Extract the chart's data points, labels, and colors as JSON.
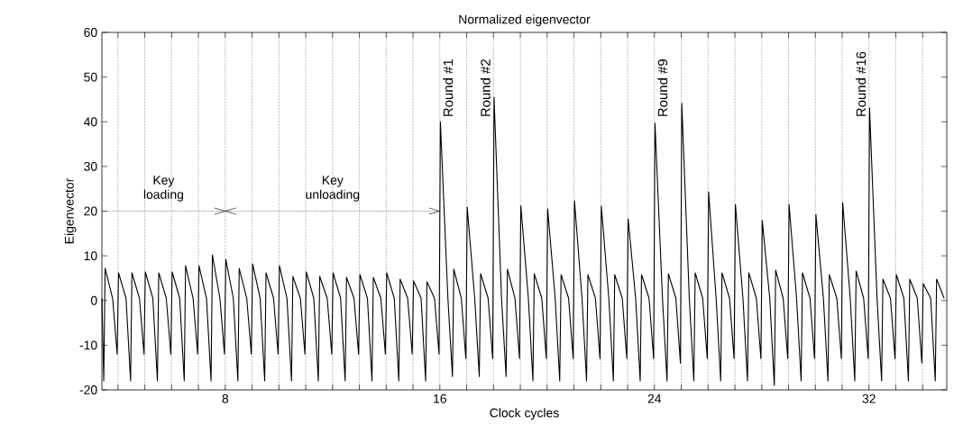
{
  "chart_data": {
    "type": "line",
    "title": "Normalized eigenvector",
    "xlabel": "Clock cycles",
    "ylabel": "Eigenvector",
    "xlim": [
      3.4,
      34.9
    ],
    "ylim": [
      -20,
      60
    ],
    "xticks": [
      {
        "value": 4,
        "label": null
      },
      {
        "value": 5,
        "label": null
      },
      {
        "value": 6,
        "label": null
      },
      {
        "value": 7,
        "label": null
      },
      8,
      {
        "value": 9,
        "label": null
      },
      {
        "value": 10,
        "label": null
      },
      {
        "value": 11,
        "label": null
      },
      {
        "value": 12,
        "label": null
      },
      {
        "value": 13,
        "label": null
      },
      {
        "value": 14,
        "label": null
      },
      {
        "value": 15,
        "label": null
      },
      16,
      {
        "value": 17,
        "label": null
      },
      {
        "value": 18,
        "label": null
      },
      {
        "value": 19,
        "label": null
      },
      {
        "value": 20,
        "label": null
      },
      {
        "value": 21,
        "label": null
      },
      {
        "value": 22,
        "label": null
      },
      {
        "value": 23,
        "label": null
      },
      24,
      {
        "value": 25,
        "label": null
      },
      {
        "value": 26,
        "label": null
      },
      {
        "value": 27,
        "label": null
      },
      {
        "value": 28,
        "label": null
      },
      {
        "value": 29,
        "label": null
      },
      {
        "value": 30,
        "label": null
      },
      {
        "value": 31,
        "label": null
      },
      32,
      {
        "value": 33,
        "label": null
      },
      {
        "value": 34,
        "label": null
      }
    ],
    "yticks": [
      -20,
      -10,
      0,
      10,
      20,
      30,
      40,
      50,
      60
    ],
    "grid": "x",
    "series": [
      {
        "color": "#000000",
        "line_style": "dotted",
        "x": [
          3.4,
          8
        ],
        "values": [
          20,
          20
        ]
      },
      {
        "color": "#000000",
        "line_style": "dotted",
        "x": [
          8,
          16
        ],
        "values": [
          20,
          20
        ]
      },
      {
        "color": "#000000",
        "line_style": "solid",
        "x": [
          3.4,
          3.47,
          3.52,
          3.8,
          3.97,
          4.02,
          4.3,
          4.47,
          4.52,
          4.8,
          4.97,
          5.02,
          5.3,
          5.47,
          5.52,
          5.8,
          5.97,
          6.02,
          6.3,
          6.47,
          6.52,
          6.8,
          6.97,
          7.02,
          7.3,
          7.47,
          7.52,
          7.8,
          7.97,
          8.02,
          8.3,
          8.47,
          8.52,
          8.8,
          8.97,
          9.02,
          9.3,
          9.47,
          9.52,
          9.8,
          9.97,
          10.02,
          10.3,
          10.47,
          10.52,
          10.8,
          10.97,
          11.02,
          11.3,
          11.47,
          11.52,
          11.8,
          11.97,
          12.02,
          12.3,
          12.47,
          12.52,
          12.8,
          12.97,
          13.02,
          13.3,
          13.47,
          13.52,
          13.8,
          13.97,
          14.02,
          14.3,
          14.47,
          14.52,
          14.8,
          14.97,
          15.02,
          15.3,
          15.47,
          15.52,
          15.8,
          15.97,
          16.02,
          16.3,
          16.47,
          16.52,
          16.8,
          16.97,
          17.02,
          17.3,
          17.47,
          17.52,
          17.8,
          17.97,
          18.02,
          18.3,
          18.47,
          18.52,
          18.8,
          18.97,
          19.02,
          19.3,
          19.47,
          19.52,
          19.8,
          19.97,
          20.02,
          20.3,
          20.47,
          20.52,
          20.8,
          20.97,
          21.02,
          21.3,
          21.47,
          21.52,
          21.8,
          21.97,
          22.02,
          22.3,
          22.47,
          22.52,
          22.8,
          22.97,
          23.02,
          23.3,
          23.47,
          23.52,
          23.8,
          23.97,
          24.02,
          24.3,
          24.47,
          24.52,
          24.8,
          24.97,
          25.02,
          25.3,
          25.47,
          25.52,
          25.8,
          25.97,
          26.02,
          26.3,
          26.47,
          26.52,
          26.8,
          26.97,
          27.02,
          27.3,
          27.47,
          27.52,
          27.8,
          27.97,
          28.02,
          28.3,
          28.47,
          28.52,
          28.8,
          28.97,
          29.02,
          29.3,
          29.47,
          29.52,
          29.8,
          29.97,
          30.02,
          30.3,
          30.47,
          30.52,
          30.8,
          30.97,
          31.02,
          31.3,
          31.47,
          31.52,
          31.8,
          31.97,
          32.02,
          32.3,
          32.47,
          32.52,
          32.8,
          32.97,
          33.02,
          33.3,
          33.47,
          33.52,
          33.8,
          33.97,
          34.02,
          34.3,
          34.47,
          34.52,
          34.8
        ],
        "values": [
          0.5,
          -18,
          7.2,
          0.5,
          -12,
          6.2,
          0.5,
          -18,
          6.2,
          0.5,
          -12,
          6.4,
          0.5,
          -18,
          6.2,
          0.5,
          -12,
          6.4,
          0.5,
          -18,
          7.8,
          0.5,
          -12,
          7.8,
          0.5,
          -18,
          10.2,
          0.5,
          -12,
          9.2,
          0.5,
          -18,
          7.2,
          0.5,
          -12,
          8.2,
          0.5,
          -18,
          6.2,
          0.5,
          -12,
          7.8,
          0.5,
          -18,
          5.4,
          0.5,
          -12,
          6.4,
          0.5,
          -18,
          5.4,
          0.5,
          -12,
          6.2,
          0.5,
          -18,
          5.2,
          0.5,
          -12,
          5.8,
          0.5,
          -18,
          5.2,
          0.5,
          -12,
          6.2,
          0.5,
          -18,
          4.8,
          0.5,
          -12,
          4.4,
          0.5,
          -18,
          4.2,
          0.5,
          -12,
          40,
          0.5,
          -17,
          7,
          0.5,
          -13,
          20.9,
          0.5,
          -17,
          6,
          0.5,
          -13,
          45.5,
          0.5,
          -17,
          7,
          0.5,
          -13,
          21.2,
          0.5,
          -18,
          6,
          0.5,
          -13,
          20.5,
          0.5,
          -18,
          5.8,
          0.5,
          -13,
          22.3,
          0.5,
          -18,
          5.8,
          0.5,
          -13,
          21.1,
          0.5,
          -18,
          5.8,
          0.5,
          -13,
          18.3,
          0.5,
          -18,
          5.8,
          0.5,
          -13,
          39.7,
          0.5,
          -18,
          6,
          0.5,
          -14,
          44.1,
          0.5,
          -18,
          6.2,
          0.5,
          -13,
          24.3,
          0.5,
          -18,
          6.2,
          0.5,
          -13,
          21.5,
          0.5,
          -18,
          6.2,
          0.5,
          -13,
          17.9,
          0.5,
          -19,
          6.8,
          0.5,
          -13,
          21.5,
          0.5,
          -18,
          6.2,
          0.5,
          -13,
          19.3,
          0.5,
          -18,
          5.8,
          0.5,
          -13,
          21.9,
          0.5,
          -18,
          6.6,
          0.5,
          -13,
          43.1,
          0.5,
          -18,
          4.8,
          0.5,
          -13,
          5.8,
          0.5,
          -18,
          4.8,
          0.5,
          -14,
          3.8,
          0.5,
          -18,
          4.8,
          0.5
        ]
      }
    ],
    "annotations": [
      {
        "text": "Key loading",
        "x": 5.7,
        "y": 20
      },
      {
        "text": "Key unloading",
        "x": 12,
        "y": 20
      },
      {
        "text": "Round #1",
        "x": 16,
        "y": 40
      },
      {
        "text": "Round #2",
        "x": 18,
        "y": 45.5
      },
      {
        "text": "Round #9",
        "x": 24,
        "y": 39.7
      },
      {
        "text": "Round #16",
        "x": 32,
        "y": 43.1
      }
    ]
  }
}
